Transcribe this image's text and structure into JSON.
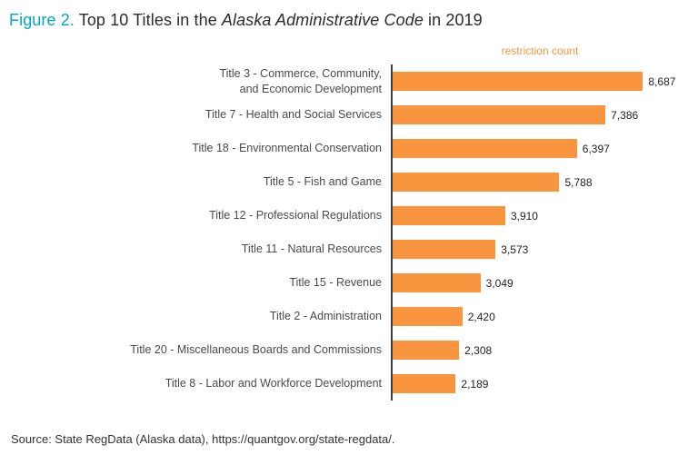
{
  "figure": {
    "label": "Figure 2.",
    "title_pre": " Top 10 Titles in the ",
    "title_italic": "Alaska Administrative Code",
    "title_post": " in 2019"
  },
  "colors": {
    "teal": "#00a9c0",
    "orange": "#f8953e"
  },
  "chart_data": {
    "type": "bar",
    "orientation": "horizontal",
    "title": "Figure 2. Top 10 Titles in the Alaska Administrative Code in 2019",
    "value_axis_label": "restriction count",
    "xlim": [
      0,
      9000
    ],
    "grid": false,
    "legend": "none",
    "bar_color": "#f8953e",
    "categories": [
      "Title 3 - Commerce, Community,\nand Economic Development",
      "Title 7 - Health and Social Services",
      "Title 18 - Environmental Conservation",
      "Title 5 - Fish and Game",
      "Title 12 - Professional Regulations",
      "Title 11 - Natural Resources",
      "Title 15 - Revenue",
      "Title 2 - Administration",
      "Title 20 - Miscellaneous Boards and Commissions",
      "Title 8 - Labor and Workforce Development"
    ],
    "values": [
      8687,
      7386,
      6397,
      5788,
      3910,
      3573,
      3049,
      2420,
      2308,
      2189
    ],
    "value_labels": [
      "8,687",
      "7,386",
      "6,397",
      "5,788",
      "3,910",
      "3,573",
      "3,049",
      "2,420",
      "2,308",
      "2,189"
    ]
  },
  "source": "Source: State RegData (Alaska data), https://quantgov.org/state-regdata/."
}
